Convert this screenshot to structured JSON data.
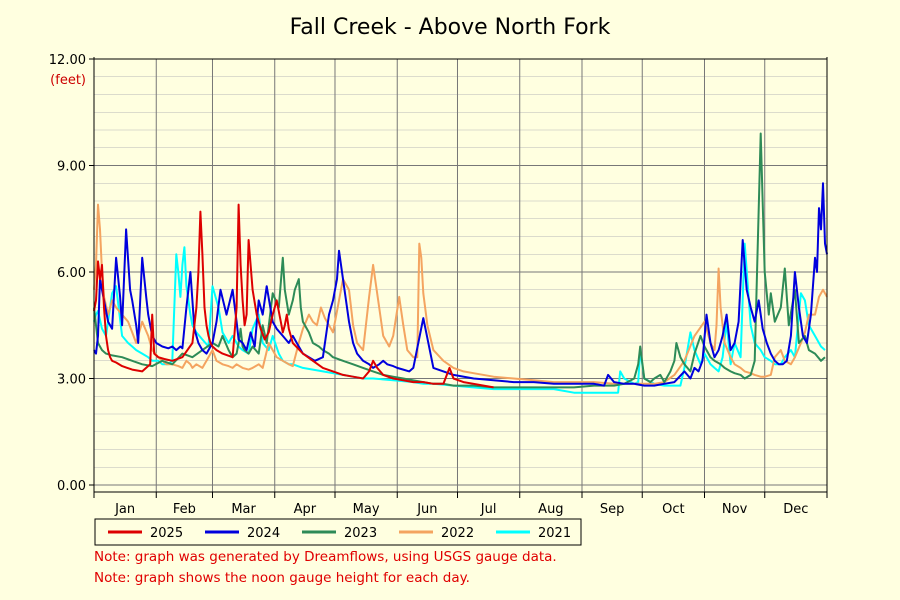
{
  "chart_data": {
    "type": "line",
    "title": "Fall Creek - Above North Fork",
    "ylabel": "(feet)",
    "xlabel": "",
    "ylim": [
      0,
      12
    ],
    "yticks": [
      0,
      3,
      6,
      9,
      12
    ],
    "ytick_labels": [
      "0.00",
      "3.00",
      "6.00",
      "9.00",
      "12.00"
    ],
    "x_unit": "day of year",
    "xlim": [
      1,
      366
    ],
    "months": [
      "Jan",
      "Feb",
      "Mar",
      "Apr",
      "May",
      "Jun",
      "Jul",
      "Aug",
      "Sep",
      "Oct",
      "Nov",
      "Dec"
    ],
    "grid": true,
    "legend_position": "bottom",
    "series": [
      {
        "name": "2025",
        "color": "#dd0000",
        "x": [
          1,
          2,
          3,
          4,
          5,
          6,
          7,
          8,
          9,
          10,
          12,
          15,
          20,
          25,
          29,
          30,
          31,
          33,
          36,
          40,
          45,
          50,
          52,
          53,
          54,
          55,
          56,
          57,
          58,
          59,
          60,
          62,
          65,
          70,
          72,
          73,
          74,
          75,
          76,
          77,
          78,
          80,
          82,
          84,
          86,
          88,
          90,
          92,
          94,
          95,
          96,
          97,
          98,
          100,
          105,
          110,
          115,
          120,
          125,
          130,
          135,
          138,
          140,
          142,
          145,
          150,
          155,
          160,
          165,
          170,
          175,
          178,
          180,
          185,
          190,
          195,
          200
        ],
        "y": [
          4.9,
          5.2,
          6.3,
          5.8,
          6.2,
          5.0,
          4.2,
          3.8,
          3.6,
          3.5,
          3.45,
          3.35,
          3.25,
          3.2,
          3.4,
          4.8,
          3.7,
          3.6,
          3.55,
          3.5,
          3.6,
          4.0,
          5.0,
          6.0,
          7.7,
          6.5,
          5.0,
          4.5,
          4.2,
          4.0,
          3.9,
          3.8,
          3.7,
          3.6,
          5.0,
          7.9,
          6.2,
          5.2,
          4.5,
          4.8,
          6.9,
          5.5,
          4.8,
          4.4,
          4.1,
          4.3,
          4.8,
          5.2,
          4.6,
          4.3,
          4.5,
          4.8,
          4.4,
          4.0,
          3.7,
          3.5,
          3.3,
          3.2,
          3.1,
          3.05,
          3.0,
          3.2,
          3.5,
          3.3,
          3.1,
          3.0,
          2.95,
          2.9,
          2.9,
          2.85,
          2.85,
          3.3,
          3.0,
          2.9,
          2.85,
          2.8,
          2.75
        ]
      },
      {
        "name": "2024",
        "color": "#0000dd",
        "x": [
          1,
          2,
          3,
          4,
          6,
          8,
          10,
          12,
          14,
          15,
          17,
          19,
          20,
          22,
          23,
          25,
          27,
          28,
          30,
          32,
          35,
          38,
          40,
          42,
          44,
          45,
          47,
          49,
          51,
          53,
          55,
          57,
          60,
          62,
          64,
          67,
          70,
          72,
          73,
          75,
          77,
          79,
          81,
          83,
          85,
          87,
          90,
          92,
          95,
          98,
          100,
          103,
          105,
          108,
          111,
          115,
          118,
          120,
          122,
          123,
          125,
          128,
          130,
          132,
          135,
          138,
          140,
          143,
          145,
          147,
          150,
          152,
          155,
          158,
          160,
          165,
          170,
          180,
          190,
          200,
          210,
          220,
          230,
          240,
          250,
          255,
          257,
          260,
          265,
          270,
          275,
          280,
          285,
          290,
          295,
          298,
          300,
          302,
          304,
          306,
          308,
          310,
          312,
          314,
          316,
          318,
          320,
          322,
          324,
          326,
          328,
          330,
          332,
          334,
          336,
          338,
          340,
          342,
          344,
          346,
          348,
          350,
          352,
          354,
          356,
          358,
          360,
          361,
          362,
          363,
          364,
          365,
          366
        ],
        "y": [
          3.8,
          3.7,
          4.2,
          5.8,
          5.2,
          4.6,
          4.4,
          6.4,
          5.3,
          4.5,
          7.2,
          5.5,
          5.2,
          4.5,
          4.0,
          6.4,
          5.3,
          4.8,
          4.2,
          4.0,
          3.9,
          3.85,
          3.9,
          3.8,
          3.9,
          3.85,
          5.0,
          6.0,
          4.4,
          4.0,
          3.8,
          3.7,
          4.0,
          4.6,
          5.5,
          4.8,
          5.5,
          4.6,
          4.1,
          4.0,
          3.8,
          4.3,
          3.9,
          5.2,
          4.8,
          5.6,
          4.6,
          4.4,
          4.2,
          4.0,
          4.2,
          3.9,
          3.7,
          3.6,
          3.5,
          3.6,
          4.8,
          5.2,
          5.8,
          6.6,
          5.8,
          4.6,
          4.0,
          3.7,
          3.5,
          3.4,
          3.3,
          3.4,
          3.5,
          3.4,
          3.35,
          3.3,
          3.25,
          3.2,
          3.3,
          4.7,
          3.3,
          3.1,
          3.0,
          2.95,
          2.9,
          2.9,
          2.85,
          2.85,
          2.85,
          2.8,
          3.1,
          2.9,
          2.85,
          2.85,
          2.8,
          2.8,
          2.85,
          2.9,
          3.2,
          3.0,
          3.3,
          3.2,
          3.5,
          4.8,
          4.0,
          3.6,
          3.8,
          4.2,
          4.8,
          3.8,
          4.0,
          4.6,
          6.9,
          5.5,
          5.0,
          4.6,
          5.2,
          4.4,
          4.0,
          3.7,
          3.5,
          3.4,
          3.4,
          3.5,
          4.2,
          6.0,
          5.0,
          4.2,
          4.0,
          4.8,
          6.4,
          6.0,
          7.8,
          7.2,
          8.5,
          6.8,
          6.5
        ]
      },
      {
        "name": "2023",
        "color": "#2e8b57",
        "x": [
          1,
          3,
          5,
          7,
          10,
          15,
          20,
          25,
          30,
          35,
          40,
          45,
          50,
          55,
          60,
          63,
          65,
          68,
          70,
          72,
          73,
          74,
          75,
          76,
          78,
          80,
          83,
          85,
          87,
          90,
          93,
          95,
          96,
          98,
          100,
          101,
          103,
          104,
          105,
          108,
          110,
          113,
          115,
          118,
          120,
          125,
          130,
          135,
          140,
          145,
          150,
          155,
          160,
          165,
          170,
          175,
          180,
          185,
          190,
          200,
          210,
          220,
          230,
          240,
          250,
          255,
          260,
          265,
          270,
          272,
          273,
          275,
          278,
          280,
          283,
          285,
          288,
          290,
          291,
          293,
          295,
          298,
          300,
          303,
          305,
          308,
          310,
          313,
          315,
          318,
          320,
          323,
          325,
          328,
          330,
          333,
          335,
          337,
          338,
          340,
          343,
          345,
          347,
          350,
          352,
          355,
          357,
          360,
          363,
          365
        ],
        "y": [
          5.0,
          4.0,
          3.8,
          3.7,
          3.65,
          3.6,
          3.5,
          3.4,
          3.35,
          3.5,
          3.4,
          3.7,
          3.6,
          3.8,
          4.0,
          3.9,
          4.2,
          3.8,
          3.6,
          3.7,
          4.0,
          4.4,
          3.9,
          3.8,
          3.7,
          3.9,
          3.7,
          4.5,
          4.0,
          5.4,
          5.0,
          6.4,
          5.5,
          4.8,
          5.2,
          5.5,
          5.8,
          5.0,
          4.6,
          4.3,
          4.0,
          3.9,
          3.8,
          3.7,
          3.6,
          3.5,
          3.4,
          3.3,
          3.2,
          3.1,
          3.05,
          3.0,
          2.95,
          2.9,
          2.85,
          2.85,
          2.8,
          2.8,
          2.8,
          2.75,
          2.75,
          2.75,
          2.75,
          2.75,
          2.8,
          2.8,
          2.8,
          2.85,
          3.0,
          3.4,
          3.9,
          3.0,
          2.9,
          3.0,
          3.1,
          2.9,
          3.2,
          3.5,
          4.0,
          3.6,
          3.4,
          3.2,
          3.7,
          4.2,
          3.9,
          3.6,
          3.5,
          3.4,
          3.3,
          3.2,
          3.15,
          3.1,
          3.0,
          3.1,
          3.5,
          9.9,
          6.0,
          4.8,
          5.4,
          4.6,
          5.0,
          6.1,
          4.5,
          5.5,
          4.0,
          4.2,
          3.8,
          3.7,
          3.5,
          3.6
        ]
      },
      {
        "name": "2022",
        "color": "#f4a460",
        "x": [
          1,
          2,
          3,
          4,
          5,
          6,
          8,
          10,
          12,
          15,
          18,
          20,
          22,
          25,
          28,
          30,
          33,
          35,
          37,
          40,
          43,
          45,
          47,
          49,
          50,
          52,
          55,
          58,
          60,
          62,
          65,
          68,
          70,
          72,
          75,
          78,
          80,
          83,
          85,
          88,
          90,
          92,
          95,
          98,
          100,
          103,
          105,
          108,
          110,
          112,
          114,
          116,
          118,
          120,
          123,
          125,
          128,
          130,
          132,
          135,
          138,
          140,
          143,
          145,
          148,
          150,
          153,
          155,
          157,
          160,
          162,
          163,
          164,
          165,
          167,
          170,
          175,
          180,
          185,
          190,
          200,
          210,
          220,
          230,
          240,
          250,
          260,
          270,
          280,
          285,
          290,
          295,
          300,
          305,
          308,
          310,
          311,
          312,
          313,
          315,
          318,
          320,
          323,
          325,
          328,
          330,
          333,
          335,
          338,
          340,
          343,
          345,
          348,
          350,
          353,
          355,
          357,
          360,
          362,
          364,
          366
        ],
        "y": [
          5.5,
          6.2,
          7.9,
          7.2,
          6.0,
          5.3,
          4.8,
          5.2,
          5.0,
          4.8,
          4.6,
          4.3,
          4.0,
          4.6,
          4.2,
          3.8,
          3.6,
          3.5,
          3.4,
          3.4,
          3.35,
          3.3,
          3.5,
          3.4,
          3.3,
          3.4,
          3.3,
          3.6,
          3.8,
          3.5,
          3.4,
          3.35,
          3.3,
          3.4,
          3.3,
          3.25,
          3.3,
          3.4,
          3.3,
          4.0,
          3.8,
          3.6,
          3.5,
          3.4,
          3.35,
          4.0,
          4.4,
          4.8,
          4.6,
          4.5,
          5.0,
          4.7,
          4.5,
          4.3,
          5.2,
          5.8,
          5.5,
          4.5,
          4.0,
          3.8,
          5.3,
          6.2,
          5.0,
          4.2,
          3.9,
          4.2,
          5.3,
          4.5,
          3.8,
          3.6,
          3.6,
          6.8,
          6.4,
          5.4,
          4.5,
          3.8,
          3.5,
          3.3,
          3.2,
          3.15,
          3.05,
          3.0,
          2.95,
          2.9,
          2.9,
          2.9,
          2.85,
          2.85,
          2.85,
          2.9,
          3.1,
          3.5,
          4.2,
          4.6,
          4.0,
          3.8,
          4.5,
          6.1,
          5.0,
          4.0,
          3.6,
          3.4,
          3.3,
          3.2,
          3.15,
          3.1,
          3.05,
          3.05,
          3.1,
          3.6,
          3.8,
          3.5,
          3.4,
          3.6,
          4.0,
          4.3,
          4.8,
          4.8,
          5.3,
          5.5,
          5.3
        ]
      },
      {
        "name": "2021",
        "color": "#00ffff",
        "x": [
          1,
          2,
          3,
          5,
          7,
          10,
          12,
          15,
          18,
          20,
          22,
          25,
          28,
          30,
          33,
          35,
          38,
          40,
          42,
          43,
          44,
          45,
          46,
          47,
          48,
          49,
          50,
          52,
          55,
          58,
          60,
          63,
          65,
          68,
          70,
          73,
          75,
          78,
          80,
          83,
          85,
          88,
          90,
          93,
          95,
          98,
          100,
          105,
          110,
          115,
          120,
          125,
          130,
          135,
          140,
          150,
          160,
          165,
          170,
          180,
          190,
          200,
          210,
          220,
          230,
          235,
          240,
          245,
          250,
          255,
          260,
          262,
          263,
          265,
          270,
          272,
          273,
          275,
          280,
          285,
          290,
          293,
          295,
          298,
          300,
          303,
          305,
          308,
          310,
          312,
          314,
          316,
          318,
          320,
          323,
          325,
          328,
          330,
          333,
          335,
          338,
          340,
          343,
          345,
          348,
          350,
          353,
          355,
          357,
          360,
          363,
          365
        ],
        "y": [
          4.6,
          4.8,
          4.9,
          4.4,
          4.2,
          5.4,
          5.6,
          4.2,
          4.0,
          3.9,
          3.8,
          3.7,
          3.6,
          3.5,
          3.5,
          3.4,
          3.4,
          3.5,
          6.5,
          6.0,
          5.3,
          6.2,
          6.7,
          5.6,
          5.2,
          4.8,
          4.5,
          4.3,
          4.1,
          3.9,
          5.6,
          5.0,
          4.3,
          4.0,
          4.2,
          3.9,
          3.8,
          3.7,
          4.4,
          4.8,
          4.0,
          3.8,
          4.2,
          3.7,
          3.5,
          3.4,
          3.4,
          3.3,
          3.25,
          3.2,
          3.15,
          3.1,
          3.05,
          3.0,
          3.0,
          2.95,
          2.9,
          2.85,
          2.85,
          2.8,
          2.75,
          2.7,
          2.7,
          2.7,
          2.7,
          2.65,
          2.6,
          2.6,
          2.6,
          2.6,
          2.6,
          2.6,
          3.2,
          3.0,
          2.85,
          2.9,
          3.8,
          3.0,
          2.85,
          2.8,
          2.8,
          2.8,
          3.3,
          4.3,
          3.8,
          3.4,
          3.7,
          3.4,
          3.3,
          3.2,
          3.6,
          4.6,
          3.4,
          4.0,
          3.6,
          6.8,
          4.5,
          4.0,
          3.8,
          3.6,
          3.5,
          3.4,
          3.4,
          3.6,
          3.8,
          3.6,
          5.4,
          5.2,
          4.5,
          4.2,
          3.9,
          3.8
        ]
      }
    ]
  },
  "notes": [
    "Note: graph was generated by Dreamflows, using USGS gauge data.",
    "Note: graph shows the noon gauge height for each day."
  ]
}
